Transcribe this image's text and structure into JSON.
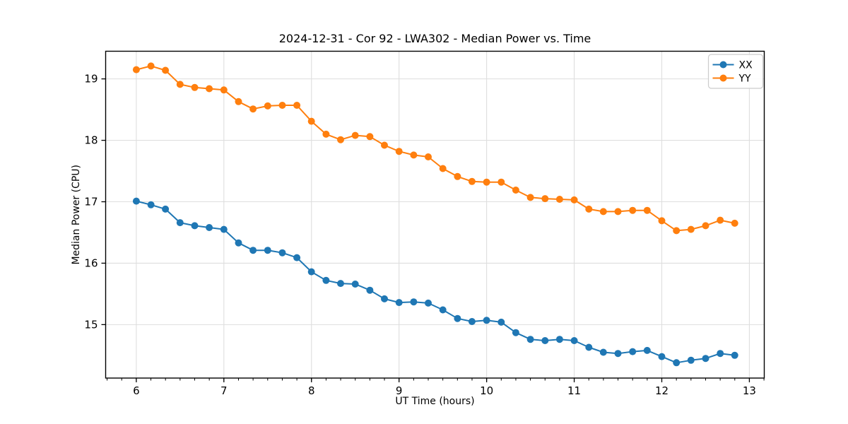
{
  "chart_data": {
    "type": "line",
    "title": "2024-12-31 - Cor 92 - LWA302 - Median Power vs. Time",
    "xlabel": "UT Time (hours)",
    "ylabel": "Median Power (CPU)",
    "xlim": [
      5.65,
      13.17
    ],
    "ylim": [
      14.13,
      19.45
    ],
    "x_ticks": [
      6,
      7,
      8,
      9,
      10,
      11,
      12,
      13
    ],
    "y_ticks": [
      15,
      16,
      17,
      18,
      19
    ],
    "x_minor_step": 0.16667,
    "grid": true,
    "legend_position": "upper right",
    "x": [
      6,
      6.167,
      6.333,
      6.5,
      6.667,
      6.833,
      7,
      7.167,
      7.333,
      7.5,
      7.667,
      7.833,
      8,
      8.167,
      8.333,
      8.5,
      8.667,
      8.833,
      9,
      9.167,
      9.333,
      9.5,
      9.667,
      9.833,
      10,
      10.167,
      10.333,
      10.5,
      10.667,
      10.833,
      11,
      11.167,
      11.333,
      11.5,
      11.667,
      11.833,
      12,
      12.167,
      12.333,
      12.5,
      12.667,
      12.833
    ],
    "series": [
      {
        "name": "XX",
        "color": "#1f77b4",
        "values": [
          17.01,
          16.95,
          16.88,
          16.66,
          16.61,
          16.58,
          16.55,
          16.33,
          16.21,
          16.21,
          16.17,
          16.09,
          15.86,
          15.72,
          15.67,
          15.66,
          15.56,
          15.42,
          15.36,
          15.37,
          15.35,
          15.24,
          15.1,
          15.05,
          15.07,
          15.04,
          14.87,
          14.76,
          14.74,
          14.76,
          14.74,
          14.63,
          14.55,
          14.53,
          14.56,
          14.58,
          14.48,
          14.38,
          14.42,
          14.45,
          14.53,
          14.5
        ]
      },
      {
        "name": "YY",
        "color": "#ff7f0e",
        "values": [
          19.15,
          19.21,
          19.14,
          18.91,
          18.86,
          18.84,
          18.82,
          18.63,
          18.51,
          18.56,
          18.57,
          18.57,
          18.31,
          18.1,
          18.01,
          18.08,
          18.06,
          17.92,
          17.82,
          17.76,
          17.73,
          17.54,
          17.41,
          17.33,
          17.32,
          17.32,
          17.19,
          17.07,
          17.05,
          17.04,
          17.03,
          16.88,
          16.84,
          16.84,
          16.86,
          16.86,
          16.69,
          16.53,
          16.55,
          16.61,
          16.7,
          16.65
        ]
      }
    ]
  },
  "colors": {
    "grid": "#dedede",
    "spine": "#000000",
    "tick": "#000000",
    "background": "#ffffff",
    "legend_border": "#cccccc",
    "legend_fill": "#ffffff"
  }
}
